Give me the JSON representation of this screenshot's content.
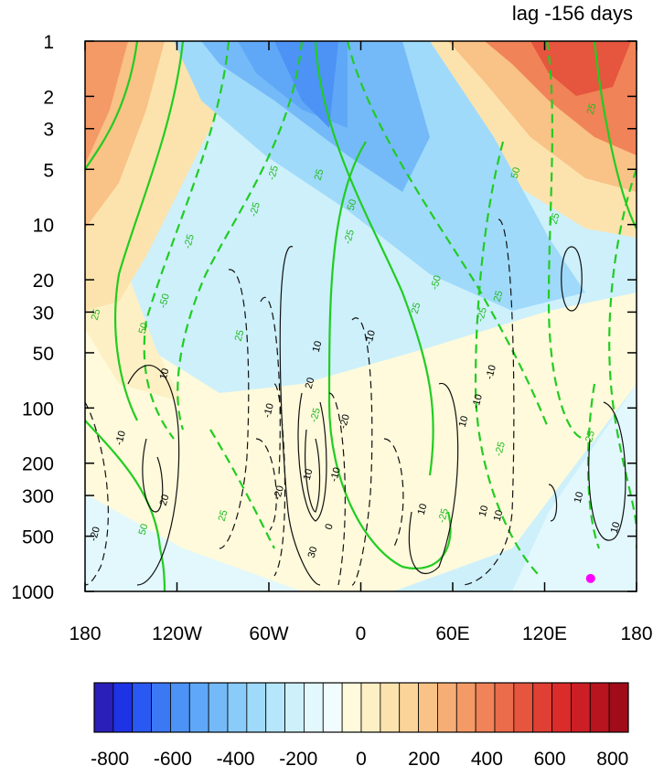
{
  "chart_data": {
    "type": "heatmap",
    "title": "lag -156 days",
    "x_ticks": [
      "180",
      "120W",
      "60W",
      "0",
      "60E",
      "120E",
      "180"
    ],
    "x_tick_lon": [
      -180,
      -120,
      -60,
      0,
      60,
      120,
      180
    ],
    "y_ticks": [
      "1",
      "2",
      "3",
      "5",
      "10",
      "20",
      "30",
      "50",
      "100",
      "200",
      "300",
      "500",
      "1000"
    ],
    "y_tick_values": [
      1,
      2,
      3,
      5,
      10,
      20,
      30,
      50,
      100,
      200,
      300,
      500,
      1000
    ],
    "y_scale": "log",
    "y_reversed": true,
    "colorbar": {
      "tick_labels": [
        "-800",
        "-600",
        "-400",
        "-200",
        "0",
        "200",
        "400",
        "600",
        "800"
      ],
      "levels_min": -850,
      "levels_max": 850,
      "level_step": 50,
      "colors": [
        "#2a1fb8",
        "#1e32e6",
        "#2a58f2",
        "#3a78f4",
        "#4d92f5",
        "#5fa8f7",
        "#74baf8",
        "#89cbf9",
        "#9fdafa",
        "#b6e6fb",
        "#cdf0fb",
        "#e2f8fd",
        "#f1fcfe",
        "#fefadb",
        "#fdf0c4",
        "#fce3ad",
        "#fbd49a",
        "#f9c287",
        "#f7ae76",
        "#f49a66",
        "#f08357",
        "#eb6c4a",
        "#e6553e",
        "#e03f33",
        "#d92c2b",
        "#cc1e25",
        "#b8141f",
        "#a00c1a"
      ]
    },
    "green_contour_labels": [
      "25",
      "50",
      "-25",
      "-50",
      "25",
      "50",
      "-25",
      "25",
      "50",
      "-25",
      "-50",
      "25",
      "-25",
      "50",
      "-25",
      "25",
      "-25",
      "-25",
      "25",
      "25",
      "-25",
      "25",
      "-25"
    ],
    "black_contour_labels": [
      "10",
      "-10",
      "20",
      "-20",
      "-10",
      "10",
      "-10",
      "20",
      "30",
      "-20",
      "-10",
      "0",
      "10",
      "-10",
      "10",
      "-10",
      "-20",
      "10",
      "10",
      "10",
      "10",
      "10"
    ],
    "marker": {
      "lon": 150,
      "p": 850,
      "color": "#ff00ff"
    }
  }
}
